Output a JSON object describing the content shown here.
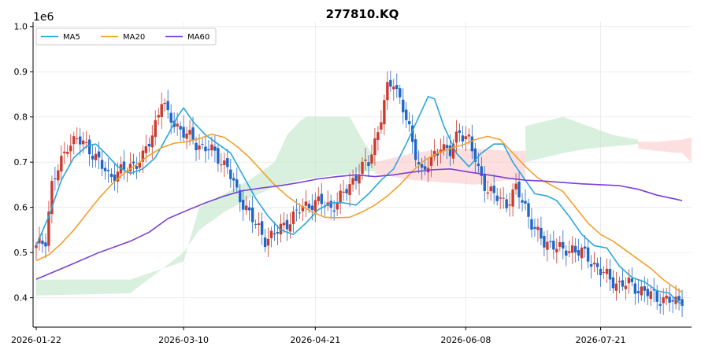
{
  "chart_data": {
    "type": "candlestick",
    "title": "277810.KQ",
    "y_offset_label": "1e6",
    "ylim": [
      0.335,
      1.01
    ],
    "x_range": [
      -1,
      209
    ],
    "grid": true,
    "legend_placement": "top-left",
    "y_ticks": [
      0.4,
      0.5,
      0.6,
      0.7,
      0.8,
      0.9,
      1.0
    ],
    "y_tick_labels": [
      "0.4",
      "0.5",
      "0.6",
      "0.7",
      "0.8",
      "0.9",
      "1.0"
    ],
    "x_ticks": [
      {
        "x": 0,
        "label": "2026-01-22"
      },
      {
        "x": 47,
        "label": "2026-03-10"
      },
      {
        "x": 89,
        "label": "2026-04-21"
      },
      {
        "x": 137,
        "label": "2026-06-08"
      },
      {
        "x": 180,
        "label": "2026-07-21"
      }
    ],
    "colors": {
      "up": "#cc3a2e",
      "down": "#1f66c8",
      "cloud_bull": "#b9e4c4",
      "cloud_bear": "#fbc5c5"
    },
    "series": [
      {
        "name": "MA5",
        "color": "#2aa6dd",
        "points": [
          [
            0,
            0.515
          ],
          [
            4,
            0.58
          ],
          [
            8,
            0.66
          ],
          [
            12,
            0.71
          ],
          [
            16,
            0.735
          ],
          [
            19,
            0.74
          ],
          [
            22,
            0.72
          ],
          [
            26,
            0.69
          ],
          [
            30,
            0.675
          ],
          [
            34,
            0.685
          ],
          [
            38,
            0.71
          ],
          [
            42,
            0.76
          ],
          [
            45,
            0.8
          ],
          [
            47,
            0.82
          ],
          [
            50,
            0.79
          ],
          [
            54,
            0.76
          ],
          [
            58,
            0.74
          ],
          [
            62,
            0.72
          ],
          [
            66,
            0.67
          ],
          [
            70,
            0.62
          ],
          [
            74,
            0.58
          ],
          [
            78,
            0.55
          ],
          [
            82,
            0.54
          ],
          [
            86,
            0.565
          ],
          [
            90,
            0.595
          ],
          [
            94,
            0.61
          ],
          [
            98,
            0.61
          ],
          [
            102,
            0.605
          ],
          [
            106,
            0.63
          ],
          [
            110,
            0.66
          ],
          [
            114,
            0.685
          ],
          [
            118,
            0.74
          ],
          [
            122,
            0.8
          ],
          [
            125,
            0.845
          ],
          [
            127,
            0.84
          ],
          [
            130,
            0.78
          ],
          [
            134,
            0.72
          ],
          [
            138,
            0.69
          ],
          [
            142,
            0.72
          ],
          [
            146,
            0.74
          ],
          [
            149,
            0.74
          ],
          [
            152,
            0.7
          ],
          [
            156,
            0.66
          ],
          [
            159,
            0.63
          ],
          [
            163,
            0.625
          ],
          [
            166,
            0.615
          ],
          [
            170,
            0.58
          ],
          [
            174,
            0.54
          ],
          [
            178,
            0.515
          ],
          [
            182,
            0.51
          ],
          [
            186,
            0.47
          ],
          [
            190,
            0.445
          ],
          [
            194,
            0.435
          ],
          [
            198,
            0.415
          ],
          [
            202,
            0.41
          ],
          [
            204,
            0.395
          ],
          [
            206,
            0.385
          ]
        ]
      },
      {
        "name": "MA20",
        "color": "#f2a12c",
        "points": [
          [
            0,
            0.482
          ],
          [
            4,
            0.495
          ],
          [
            8,
            0.52
          ],
          [
            12,
            0.55
          ],
          [
            16,
            0.585
          ],
          [
            20,
            0.62
          ],
          [
            24,
            0.65
          ],
          [
            28,
            0.675
          ],
          [
            32,
            0.695
          ],
          [
            36,
            0.715
          ],
          [
            40,
            0.732
          ],
          [
            44,
            0.742
          ],
          [
            48,
            0.745
          ],
          [
            52,
            0.752
          ],
          [
            56,
            0.762
          ],
          [
            60,
            0.755
          ],
          [
            64,
            0.735
          ],
          [
            68,
            0.71
          ],
          [
            72,
            0.68
          ],
          [
            76,
            0.65
          ],
          [
            80,
            0.625
          ],
          [
            84,
            0.605
          ],
          [
            88,
            0.59
          ],
          [
            92,
            0.578
          ],
          [
            96,
            0.577
          ],
          [
            100,
            0.578
          ],
          [
            104,
            0.59
          ],
          [
            108,
            0.605
          ],
          [
            112,
            0.625
          ],
          [
            116,
            0.65
          ],
          [
            120,
            0.68
          ],
          [
            124,
            0.705
          ],
          [
            128,
            0.72
          ],
          [
            132,
            0.73
          ],
          [
            136,
            0.738
          ],
          [
            140,
            0.75
          ],
          [
            144,
            0.757
          ],
          [
            148,
            0.75
          ],
          [
            152,
            0.72
          ],
          [
            156,
            0.69
          ],
          [
            160,
            0.665
          ],
          [
            164,
            0.65
          ],
          [
            168,
            0.635
          ],
          [
            172,
            0.6
          ],
          [
            176,
            0.565
          ],
          [
            180,
            0.54
          ],
          [
            184,
            0.525
          ],
          [
            188,
            0.505
          ],
          [
            192,
            0.485
          ],
          [
            196,
            0.465
          ],
          [
            200,
            0.44
          ],
          [
            204,
            0.42
          ],
          [
            206,
            0.412
          ]
        ]
      },
      {
        "name": "MA60",
        "color": "#7b3fd6",
        "points": [
          [
            0,
            0.441
          ],
          [
            10,
            0.47
          ],
          [
            20,
            0.5
          ],
          [
            30,
            0.525
          ],
          [
            36,
            0.545
          ],
          [
            42,
            0.575
          ],
          [
            48,
            0.593
          ],
          [
            54,
            0.61
          ],
          [
            60,
            0.625
          ],
          [
            66,
            0.637
          ],
          [
            72,
            0.643
          ],
          [
            78,
            0.648
          ],
          [
            84,
            0.655
          ],
          [
            90,
            0.663
          ],
          [
            96,
            0.668
          ],
          [
            102,
            0.672
          ],
          [
            108,
            0.668
          ],
          [
            114,
            0.672
          ],
          [
            120,
            0.678
          ],
          [
            126,
            0.683
          ],
          [
            132,
            0.685
          ],
          [
            138,
            0.678
          ],
          [
            144,
            0.672
          ],
          [
            150,
            0.665
          ],
          [
            156,
            0.66
          ],
          [
            162,
            0.658
          ],
          [
            168,
            0.655
          ],
          [
            174,
            0.652
          ],
          [
            180,
            0.65
          ],
          [
            186,
            0.648
          ],
          [
            192,
            0.64
          ],
          [
            198,
            0.627
          ],
          [
            204,
            0.618
          ],
          [
            206,
            0.615
          ]
        ]
      }
    ],
    "ichimoku_cloud": [
      {
        "kind": "bull",
        "upper": [
          [
            0,
            0.44
          ],
          [
            30,
            0.44
          ],
          [
            47,
            0.48
          ],
          [
            52,
            0.6
          ],
          [
            60,
            0.63
          ],
          [
            68,
            0.66
          ],
          [
            76,
            0.7
          ],
          [
            80,
            0.76
          ],
          [
            84,
            0.79
          ],
          [
            86,
            0.8
          ],
          [
            100,
            0.8
          ],
          [
            104,
            0.75
          ],
          [
            108,
            0.71
          ]
        ],
        "lower": [
          [
            0,
            0.405
          ],
          [
            30,
            0.41
          ],
          [
            47,
            0.5
          ],
          [
            52,
            0.55
          ],
          [
            60,
            0.59
          ],
          [
            68,
            0.62
          ],
          [
            76,
            0.645
          ],
          [
            84,
            0.66
          ],
          [
            94,
            0.67
          ],
          [
            100,
            0.675
          ],
          [
            104,
            0.68
          ],
          [
            108,
            0.68
          ]
        ]
      },
      {
        "kind": "bear",
        "upper": [
          [
            108,
            0.7
          ],
          [
            120,
            0.72
          ],
          [
            130,
            0.73
          ],
          [
            140,
            0.73
          ],
          [
            150,
            0.725
          ],
          [
            156,
            0.725
          ]
        ],
        "lower": [
          [
            108,
            0.675
          ],
          [
            120,
            0.66
          ],
          [
            130,
            0.655
          ],
          [
            140,
            0.65
          ],
          [
            150,
            0.66
          ],
          [
            156,
            0.66
          ]
        ]
      },
      {
        "kind": "bull",
        "upper": [
          [
            156,
            0.78
          ],
          [
            162,
            0.79
          ],
          [
            168,
            0.8
          ],
          [
            176,
            0.78
          ],
          [
            184,
            0.76
          ],
          [
            192,
            0.75
          ]
        ],
        "lower": [
          [
            156,
            0.7
          ],
          [
            162,
            0.71
          ],
          [
            168,
            0.72
          ],
          [
            176,
            0.73
          ],
          [
            184,
            0.735
          ],
          [
            192,
            0.74
          ]
        ]
      },
      {
        "kind": "bear",
        "upper": [
          [
            192,
            0.745
          ],
          [
            198,
            0.745
          ],
          [
            206,
            0.75
          ],
          [
            212,
            0.76
          ],
          [
            218,
            0.745
          ],
          [
            224,
            0.73
          ],
          [
            230,
            0.72
          ],
          [
            236,
            0.7
          ],
          [
            242,
            0.68
          ],
          [
            248,
            0.672
          ]
        ],
        "lower": [
          [
            192,
            0.73
          ],
          [
            198,
            0.725
          ],
          [
            206,
            0.72
          ],
          [
            212,
            0.68
          ],
          [
            218,
            0.64
          ],
          [
            224,
            0.59
          ],
          [
            230,
            0.55
          ],
          [
            236,
            0.5
          ],
          [
            242,
            0.49
          ],
          [
            248,
            0.47
          ]
        ]
      }
    ],
    "candles_note": "daily candles between x 0 and 206",
    "candle_anchors": [
      [
        0,
        0.51
      ],
      [
        3,
        0.53
      ],
      [
        5,
        0.65
      ],
      [
        8,
        0.7
      ],
      [
        10,
        0.74
      ],
      [
        13,
        0.75
      ],
      [
        17,
        0.73
      ],
      [
        20,
        0.7
      ],
      [
        23,
        0.67
      ],
      [
        27,
        0.68
      ],
      [
        30,
        0.69
      ],
      [
        34,
        0.71
      ],
      [
        37,
        0.76
      ],
      [
        40,
        0.84
      ],
      [
        42,
        0.8
      ],
      [
        45,
        0.78
      ],
      [
        48,
        0.76
      ],
      [
        51,
        0.74
      ],
      [
        55,
        0.73
      ],
      [
        58,
        0.71
      ],
      [
        61,
        0.69
      ],
      [
        64,
        0.63
      ],
      [
        67,
        0.6
      ],
      [
        70,
        0.56
      ],
      [
        73,
        0.53
      ],
      [
        76,
        0.54
      ],
      [
        79,
        0.56
      ],
      [
        82,
        0.58
      ],
      [
        85,
        0.6
      ],
      [
        88,
        0.61
      ],
      [
        91,
        0.61
      ],
      [
        94,
        0.6
      ],
      [
        97,
        0.62
      ],
      [
        100,
        0.65
      ],
      [
        103,
        0.68
      ],
      [
        106,
        0.7
      ],
      [
        109,
        0.77
      ],
      [
        112,
        0.86
      ],
      [
        114,
        0.88
      ],
      [
        117,
        0.82
      ],
      [
        120,
        0.74
      ],
      [
        123,
        0.68
      ],
      [
        126,
        0.7
      ],
      [
        129,
        0.74
      ],
      [
        132,
        0.72
      ],
      [
        135,
        0.77
      ],
      [
        138,
        0.75
      ],
      [
        141,
        0.68
      ],
      [
        144,
        0.64
      ],
      [
        147,
        0.62
      ],
      [
        150,
        0.61
      ],
      [
        153,
        0.64
      ],
      [
        156,
        0.6
      ],
      [
        159,
        0.55
      ],
      [
        162,
        0.52
      ],
      [
        165,
        0.52
      ],
      [
        168,
        0.5
      ],
      [
        171,
        0.51
      ],
      [
        174,
        0.5
      ],
      [
        177,
        0.48
      ],
      [
        180,
        0.46
      ],
      [
        183,
        0.44
      ],
      [
        186,
        0.43
      ],
      [
        189,
        0.43
      ],
      [
        192,
        0.42
      ],
      [
        195,
        0.41
      ],
      [
        198,
        0.4
      ],
      [
        201,
        0.395
      ],
      [
        204,
        0.39
      ],
      [
        206,
        0.4
      ]
    ],
    "legend": [
      {
        "label": "MA5",
        "color": "#2aa6dd"
      },
      {
        "label": "MA20",
        "color": "#f2a12c"
      },
      {
        "label": "MA60",
        "color": "#7b3fd6"
      }
    ]
  }
}
